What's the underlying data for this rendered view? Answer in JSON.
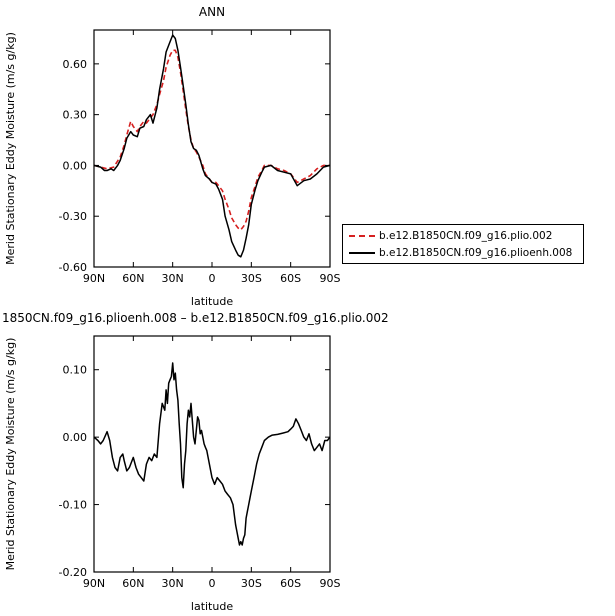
{
  "chart_data": [
    {
      "type": "line",
      "title": "ANN",
      "xlabel": "latitude",
      "ylabel": "Merid Stationary Eddy Moisture (m/s g/kg)",
      "x_ticks": [
        "90N",
        "60N",
        "30N",
        "0",
        "30S",
        "60S",
        "90S"
      ],
      "xlim": [
        90,
        -90
      ],
      "ylim": [
        -0.6,
        0.8
      ],
      "y_ticks": [
        "0.60",
        "0.30",
        "0.00",
        "-0.30",
        "-0.60"
      ],
      "legend": "right",
      "series": [
        {
          "name": "b.e12.B1850CN.f09_g16.plio.002",
          "color": "#d62020",
          "style": "dashed",
          "x": [
            90,
            85,
            80,
            75,
            70,
            67,
            65,
            62,
            60,
            57,
            55,
            52,
            50,
            47,
            45,
            42,
            40,
            37,
            35,
            32,
            30,
            28,
            26,
            24,
            22,
            20,
            18,
            16,
            14,
            12,
            10,
            7,
            5,
            2,
            0,
            -3,
            -5,
            -8,
            -10,
            -13,
            -15,
            -18,
            -20,
            -22,
            -24,
            -26,
            -28,
            -30,
            -33,
            -35,
            -38,
            -40,
            -45,
            -50,
            -55,
            -60,
            -65,
            -70,
            -75,
            -80,
            -85,
            -90
          ],
          "y": [
            0.0,
            -0.01,
            -0.02,
            -0.01,
            0.05,
            0.12,
            0.18,
            0.26,
            0.23,
            0.2,
            0.23,
            0.26,
            0.25,
            0.28,
            0.3,
            0.36,
            0.42,
            0.5,
            0.58,
            0.65,
            0.68,
            0.68,
            0.64,
            0.55,
            0.44,
            0.33,
            0.23,
            0.15,
            0.1,
            0.08,
            0.05,
            0.0,
            -0.05,
            -0.08,
            -0.1,
            -0.1,
            -0.12,
            -0.15,
            -0.2,
            -0.26,
            -0.31,
            -0.35,
            -0.37,
            -0.38,
            -0.36,
            -0.33,
            -0.27,
            -0.19,
            -0.12,
            -0.07,
            -0.03,
            0.0,
            0.0,
            -0.02,
            -0.03,
            -0.05,
            -0.1,
            -0.08,
            -0.06,
            -0.02,
            0.0,
            0.0
          ]
        },
        {
          "name": "b.e12.B1850CN.f09_g16.plioenh.008",
          "color": "#000000",
          "style": "solid",
          "x": [
            90,
            85,
            82,
            80,
            77,
            75,
            72,
            70,
            67,
            65,
            62,
            60,
            57,
            55,
            52,
            50,
            47,
            45,
            42,
            40,
            37,
            35,
            32,
            30,
            28,
            26,
            24,
            22,
            20,
            18,
            16,
            14,
            12,
            10,
            7,
            5,
            2,
            0,
            -3,
            -5,
            -8,
            -10,
            -13,
            -15,
            -18,
            -20,
            -22,
            -24,
            -26,
            -28,
            -30,
            -33,
            -35,
            -38,
            -40,
            -45,
            -50,
            -55,
            -60,
            -65,
            -70,
            -75,
            -80,
            -85,
            -90
          ],
          "y": [
            0.0,
            -0.01,
            -0.03,
            -0.03,
            -0.02,
            -0.03,
            0.0,
            0.03,
            0.1,
            0.16,
            0.2,
            0.18,
            0.17,
            0.22,
            0.23,
            0.27,
            0.3,
            0.25,
            0.34,
            0.45,
            0.57,
            0.67,
            0.73,
            0.77,
            0.75,
            0.68,
            0.58,
            0.47,
            0.36,
            0.24,
            0.14,
            0.1,
            0.09,
            0.06,
            -0.02,
            -0.06,
            -0.08,
            -0.1,
            -0.11,
            -0.14,
            -0.2,
            -0.3,
            -0.38,
            -0.45,
            -0.5,
            -0.53,
            -0.54,
            -0.5,
            -0.43,
            -0.35,
            -0.23,
            -0.14,
            -0.09,
            -0.04,
            -0.01,
            0.0,
            -0.03,
            -0.04,
            -0.05,
            -0.12,
            -0.09,
            -0.08,
            -0.05,
            -0.01,
            0.0
          ]
        }
      ]
    },
    {
      "type": "line",
      "title": "1850CN.f09_g16.plioenh.008 – b.e12.B1850CN.f09_g16.plio.002",
      "xlabel": "latitude",
      "ylabel": "Merid Stationary Eddy Moisture (m/s g/kg)",
      "x_ticks": [
        "90N",
        "60N",
        "30N",
        "0",
        "30S",
        "60S",
        "90S"
      ],
      "xlim": [
        90,
        -90
      ],
      "ylim": [
        -0.2,
        0.15
      ],
      "y_ticks": [
        "0.10",
        "0.00",
        "-0.10",
        "-0.20"
      ],
      "series": [
        {
          "color": "#000000",
          "style": "solid",
          "x": [
            90,
            87,
            85,
            83,
            80,
            78,
            76,
            74,
            72,
            70,
            68,
            67,
            65,
            63,
            60,
            58,
            56,
            54,
            52,
            50,
            48,
            46,
            44,
            42,
            40,
            38,
            36,
            35,
            34,
            33,
            32,
            31,
            30,
            29,
            28,
            27,
            26,
            25,
            24,
            23,
            22,
            21,
            20,
            19,
            18,
            17,
            16,
            15,
            14,
            13,
            12,
            11,
            10,
            9,
            8,
            7,
            6,
            5,
            4,
            3,
            2,
            1,
            0,
            -2,
            -4,
            -6,
            -8,
            -10,
            -12,
            -14,
            -16,
            -18,
            -19,
            -20,
            -21,
            -22,
            -23,
            -24,
            -25,
            -26,
            -27,
            -28,
            -29,
            -30,
            -32,
            -34,
            -36,
            -38,
            -40,
            -43,
            -46,
            -50,
            -54,
            -58,
            -60,
            -62,
            -64,
            -66,
            -68,
            -70,
            -72,
            -74,
            -76,
            -78,
            -80,
            -82,
            -84,
            -86,
            -88,
            -90
          ],
          "y": [
            0.0,
            -0.005,
            -0.01,
            -0.005,
            0.008,
            -0.005,
            -0.03,
            -0.045,
            -0.05,
            -0.03,
            -0.025,
            -0.035,
            -0.05,
            -0.045,
            -0.03,
            -0.045,
            -0.055,
            -0.06,
            -0.065,
            -0.04,
            -0.03,
            -0.035,
            -0.025,
            -0.03,
            0.02,
            0.05,
            0.04,
            0.07,
            0.05,
            0.08,
            0.085,
            0.09,
            0.11,
            0.085,
            0.095,
            0.07,
            0.055,
            0.02,
            -0.01,
            -0.06,
            -0.075,
            -0.04,
            -0.02,
            0.02,
            0.04,
            0.03,
            0.05,
            0.025,
            0.0,
            -0.01,
            0.01,
            0.03,
            0.025,
            0.005,
            0.01,
            0.0,
            -0.01,
            -0.015,
            -0.02,
            -0.03,
            -0.04,
            -0.05,
            -0.06,
            -0.07,
            -0.06,
            -0.065,
            -0.07,
            -0.08,
            -0.085,
            -0.09,
            -0.1,
            -0.13,
            -0.14,
            -0.15,
            -0.16,
            -0.155,
            -0.16,
            -0.15,
            -0.145,
            -0.12,
            -0.11,
            -0.1,
            -0.09,
            -0.08,
            -0.06,
            -0.04,
            -0.025,
            -0.015,
            -0.005,
            0.0,
            0.003,
            0.004,
            0.006,
            0.008,
            0.012,
            0.016,
            0.027,
            0.02,
            0.01,
            0.0,
            -0.005,
            0.005,
            -0.01,
            -0.02,
            -0.015,
            -0.01,
            -0.02,
            -0.005,
            -0.005,
            0.0
          ]
        }
      ]
    }
  ]
}
